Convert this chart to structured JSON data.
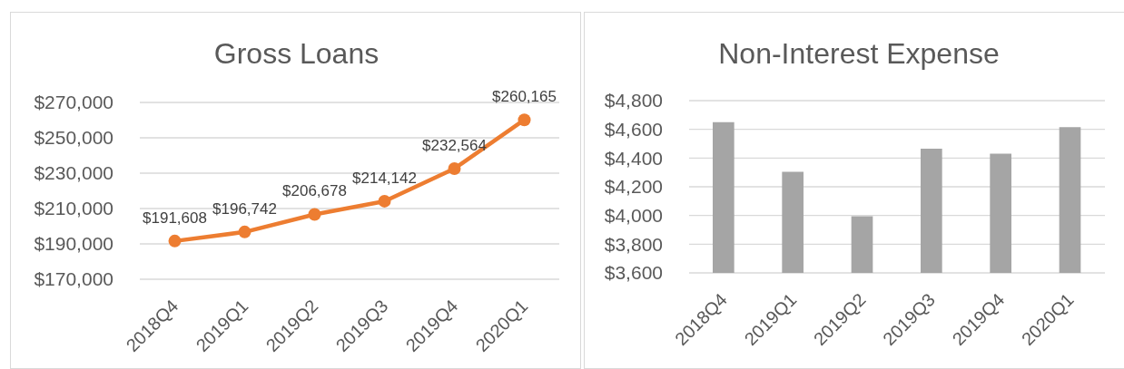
{
  "chart_data": [
    {
      "type": "line",
      "title": "Gross Loans",
      "categories": [
        "2018Q4",
        "2019Q1",
        "2019Q2",
        "2019Q3",
        "2019Q4",
        "2020Q1"
      ],
      "values": [
        191608,
        196742,
        206678,
        214142,
        232564,
        260165
      ],
      "value_labels": [
        "$191,608",
        "$196,742",
        "$206,678",
        "$214,142",
        "$232,564",
        "$260,165"
      ],
      "color": "#ed7d31",
      "marker": "circle",
      "ylim": [
        170000,
        270000
      ],
      "yticks": [
        {
          "value": 170000,
          "label": "$170,000"
        },
        {
          "value": 190000,
          "label": "$190,000"
        },
        {
          "value": 210000,
          "label": "$210,000"
        },
        {
          "value": 230000,
          "label": "$230,000"
        },
        {
          "value": 250000,
          "label": "$250,000"
        },
        {
          "value": 270000,
          "label": "$270,000"
        }
      ],
      "grid": "y"
    },
    {
      "type": "bar",
      "title": "Non-Interest Expense",
      "categories": [
        "2018Q4",
        "2019Q1",
        "2019Q2",
        "2019Q3",
        "2019Q4",
        "2020Q1"
      ],
      "values": [
        4650,
        4305,
        3995,
        4465,
        4430,
        4615
      ],
      "color": "#a5a5a5",
      "ylim": [
        3600,
        4800
      ],
      "yticks": [
        {
          "value": 3600,
          "label": "$3,600"
        },
        {
          "value": 3800,
          "label": "$3,800"
        },
        {
          "value": 4000,
          "label": "$4,000"
        },
        {
          "value": 4200,
          "label": "$4,200"
        },
        {
          "value": 4400,
          "label": "$4,400"
        },
        {
          "value": 4600,
          "label": "$4,600"
        },
        {
          "value": 4800,
          "label": "$4,800"
        }
      ],
      "grid": "y"
    }
  ]
}
